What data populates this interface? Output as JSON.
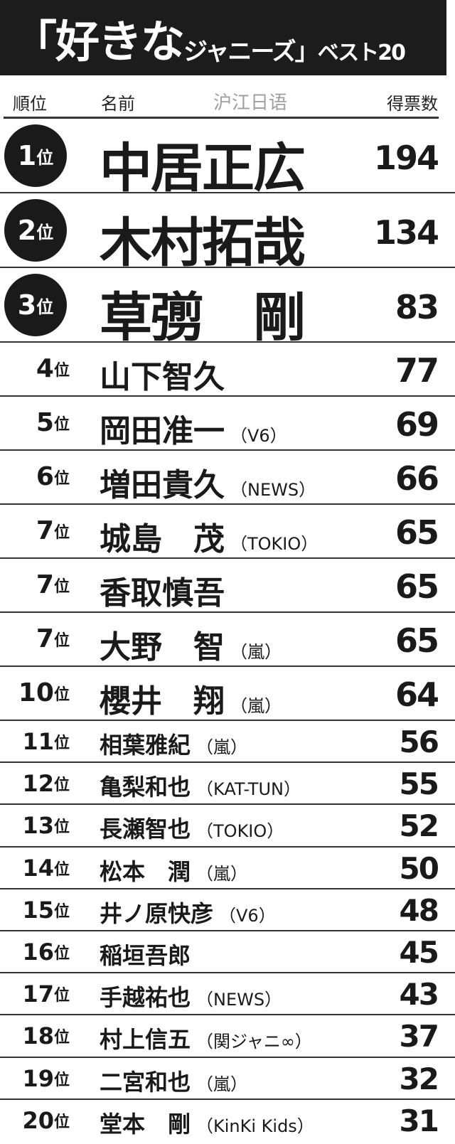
{
  "title": {
    "open": "「",
    "big": "好きな",
    "mid": "ジャニーズ",
    "close": "」",
    "suffix": "ベスト20"
  },
  "columns": {
    "rank": "順位",
    "name": "名前",
    "votes": "得票数"
  },
  "rows": [
    {
      "rank": "1",
      "rank_suffix": "位",
      "name": "中居正広",
      "group": "",
      "votes": "194"
    },
    {
      "rank": "2",
      "rank_suffix": "位",
      "name": "木村拓哉",
      "group": "",
      "votes": "134"
    },
    {
      "rank": "3",
      "rank_suffix": "位",
      "name": "草彅　剛",
      "group": "",
      "votes": "83"
    },
    {
      "rank": "4",
      "rank_suffix": "位",
      "name": "山下智久",
      "group": "",
      "votes": "77"
    },
    {
      "rank": "5",
      "rank_suffix": "位",
      "name": "岡田准一",
      "group": "（V6）",
      "votes": "69"
    },
    {
      "rank": "6",
      "rank_suffix": "位",
      "name": "増田貴久",
      "group": "（NEWS）",
      "votes": "66"
    },
    {
      "rank": "7",
      "rank_suffix": "位",
      "name": "城島　茂",
      "group": "（TOKIO）",
      "votes": "65"
    },
    {
      "rank": "7",
      "rank_suffix": "位",
      "name": "香取慎吾",
      "group": "",
      "votes": "65"
    },
    {
      "rank": "7",
      "rank_suffix": "位",
      "name": "大野　智",
      "group": "（嵐）",
      "votes": "65"
    },
    {
      "rank": "10",
      "rank_suffix": "位",
      "name": "櫻井　翔",
      "group": "（嵐）",
      "votes": "64"
    },
    {
      "rank": "11",
      "rank_suffix": "位",
      "name": "相葉雅紀",
      "group": "（嵐）",
      "votes": "56"
    },
    {
      "rank": "12",
      "rank_suffix": "位",
      "name": "亀梨和也",
      "group": "（KAT-TUN）",
      "votes": "55"
    },
    {
      "rank": "13",
      "rank_suffix": "位",
      "name": "長瀬智也",
      "group": "（TOKIO）",
      "votes": "52"
    },
    {
      "rank": "14",
      "rank_suffix": "位",
      "name": "松本　潤",
      "group": "（嵐）",
      "votes": "50"
    },
    {
      "rank": "15",
      "rank_suffix": "位",
      "name": "井ノ原快彦",
      "group": "（V6）",
      "votes": "48"
    },
    {
      "rank": "16",
      "rank_suffix": "位",
      "name": "稲垣吾郎",
      "group": "",
      "votes": "45"
    },
    {
      "rank": "17",
      "rank_suffix": "位",
      "name": "手越祐也",
      "group": "（NEWS）",
      "votes": "43"
    },
    {
      "rank": "18",
      "rank_suffix": "位",
      "name": "村上信五",
      "group": "（関ジャニ∞）",
      "votes": "37"
    },
    {
      "rank": "19",
      "rank_suffix": "位",
      "name": "二宮和也",
      "group": "（嵐）",
      "votes": "32"
    },
    {
      "rank": "20",
      "rank_suffix": "位",
      "name": "堂本　剛",
      "group": "（KinKi Kids）",
      "votes": "31"
    }
  ],
  "watermark": "沪江日语"
}
